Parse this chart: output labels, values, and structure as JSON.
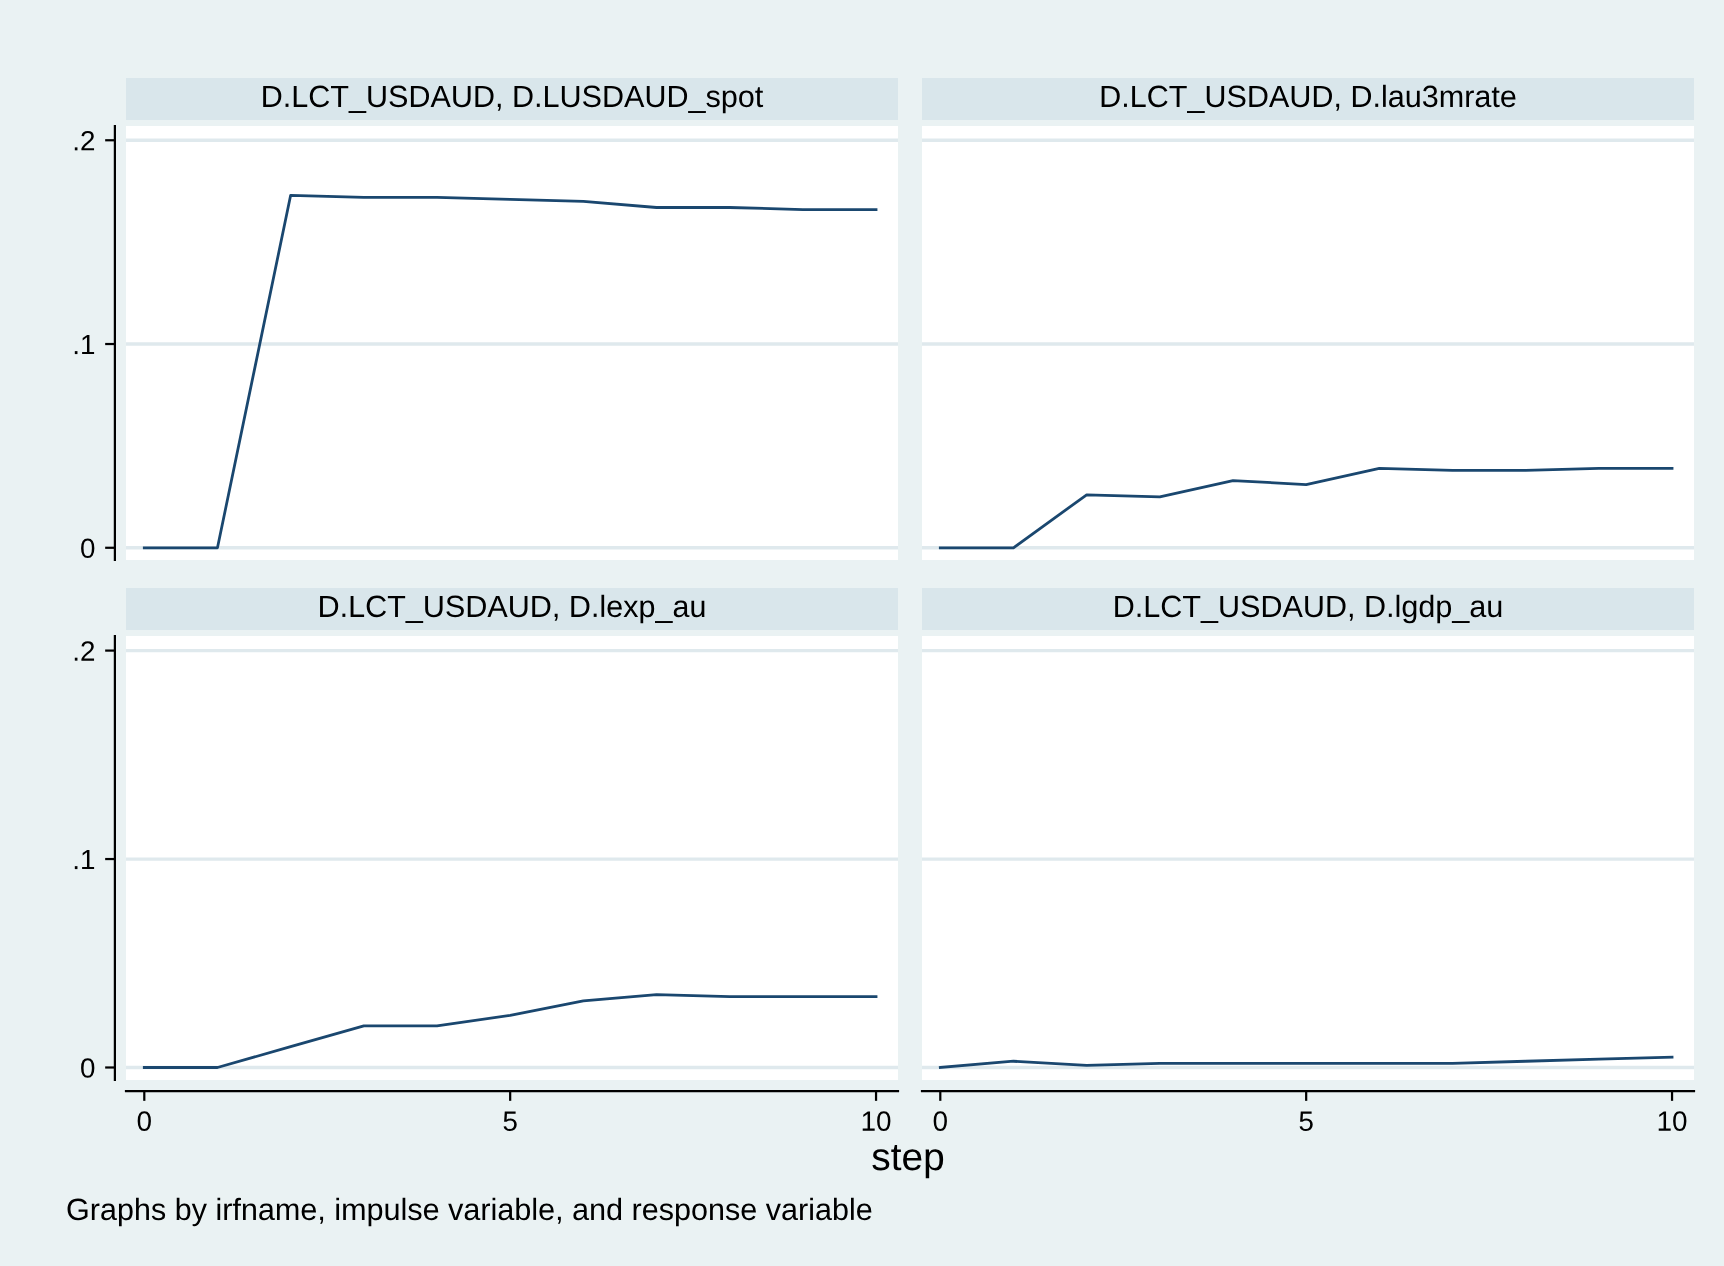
{
  "chart_data": [
    {
      "type": "line",
      "title": "D.LCT_USDAUD, D.LUSDAUD_spot",
      "x": [
        0,
        1,
        2,
        3,
        4,
        5,
        6,
        7,
        8,
        9,
        10
      ],
      "series": [
        {
          "color": "#1a476f",
          "values": [
            0,
            0,
            0.173,
            0.172,
            0.172,
            0.171,
            0.17,
            0.167,
            0.167,
            0.166,
            0.166
          ]
        }
      ],
      "xlim": [
        -0.25,
        10.3
      ],
      "ylim": [
        -0.006,
        0.207
      ],
      "yticks": [
        0,
        {
          "value": 0.1,
          "label": ".1"
        },
        {
          "value": 0.2,
          "label": ".2"
        }
      ],
      "grid": "y",
      "tick_labels": "y",
      "marker": "none",
      "line_style": "solid"
    },
    {
      "type": "line",
      "title": "D.LCT_USDAUD, D.lau3mrate",
      "x": [
        0,
        1,
        2,
        3,
        4,
        5,
        6,
        7,
        8,
        9,
        10
      ],
      "series": [
        {
          "color": "#1a476f",
          "values": [
            0,
            0,
            0.026,
            0.025,
            0.033,
            0.031,
            0.039,
            0.038,
            0.038,
            0.039,
            0.039
          ]
        }
      ],
      "xlim": [
        -0.25,
        10.3
      ],
      "ylim": [
        -0.006,
        0.207
      ],
      "yticks": [
        {
          "value": 0,
          "label": null
        },
        {
          "value": 0.1,
          "label": null
        },
        {
          "value": 0.2,
          "label": null
        }
      ],
      "grid": "y",
      "tick_labels": false,
      "marker": "none",
      "line_style": "solid"
    },
    {
      "type": "line",
      "title": "D.LCT_USDAUD, D.lexp_au",
      "x": [
        0,
        1,
        2,
        3,
        4,
        5,
        6,
        7,
        8,
        9,
        10
      ],
      "series": [
        {
          "color": "#1a476f",
          "values": [
            0,
            0,
            0.01,
            0.02,
            0.02,
            0.025,
            0.032,
            0.035,
            0.034,
            0.034,
            0.034
          ]
        }
      ],
      "xlim": [
        -0.25,
        10.3
      ],
      "ylim": [
        -0.006,
        0.207
      ],
      "xticks": [
        0,
        5,
        10
      ],
      "yticks": [
        0,
        {
          "value": 0.1,
          "label": ".1"
        },
        {
          "value": 0.2,
          "label": ".2"
        }
      ],
      "grid": "y",
      "marker": "none",
      "line_style": "solid",
      "xlabel": "step",
      "annotations": [
        "Graphs by irfname, impulse variable, and response variable"
      ]
    },
    {
      "type": "line",
      "title": "D.LCT_USDAUD, D.lgdp_au",
      "x": [
        0,
        1,
        2,
        3,
        4,
        5,
        6,
        7,
        8,
        9,
        10
      ],
      "series": [
        {
          "color": "#1a476f",
          "values": [
            0,
            0.003,
            0.001,
            0.002,
            0.002,
            0.002,
            0.002,
            0.002,
            0.003,
            0.004,
            0.005
          ]
        }
      ],
      "xlim": [
        -0.25,
        10.3
      ],
      "ylim": [
        -0.006,
        0.207
      ],
      "xticks": [
        0,
        5,
        10
      ],
      "yticks": [
        {
          "value": 0,
          "label": null
        },
        {
          "value": 0.1,
          "label": null
        },
        {
          "value": 0.2,
          "label": null
        }
      ],
      "grid": "y",
      "tick_labels": "x",
      "marker": "none",
      "line_style": "solid"
    }
  ]
}
